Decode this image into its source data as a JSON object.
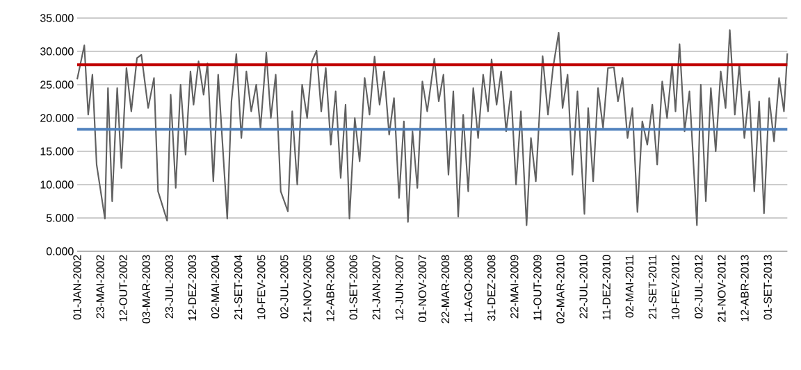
{
  "chart_data": {
    "type": "line",
    "xlim": [
      "2002-01-01",
      "2013-12-31"
    ],
    "ylim": [
      0,
      35
    ],
    "yticks": [
      {
        "value": 0,
        "label": "0.000"
      },
      {
        "value": 5,
        "label": "5.000"
      },
      {
        "value": 10,
        "label": "10.000"
      },
      {
        "value": 15,
        "label": "15.000"
      },
      {
        "value": 20,
        "label": "20.000"
      },
      {
        "value": 25,
        "label": "25.000"
      },
      {
        "value": 30,
        "label": "30.000"
      },
      {
        "value": 35,
        "label": "35.000"
      }
    ],
    "xticks": [
      {
        "value": "2002-01-01",
        "label": "01-JAN-2002"
      },
      {
        "value": "2002-05-23",
        "label": "23-MAI-2002"
      },
      {
        "value": "2002-10-12",
        "label": "12-OUT-2002"
      },
      {
        "value": "2003-03-03",
        "label": "03-MAR-2003"
      },
      {
        "value": "2003-07-23",
        "label": "23-JUL-2003"
      },
      {
        "value": "2003-12-12",
        "label": "12-DEZ-2003"
      },
      {
        "value": "2004-05-02",
        "label": "02-MAI-2004"
      },
      {
        "value": "2004-09-21",
        "label": "21-SET-2004"
      },
      {
        "value": "2005-02-10",
        "label": "10-FEV-2005"
      },
      {
        "value": "2005-07-02",
        "label": "02-JUL-2005"
      },
      {
        "value": "2005-11-21",
        "label": "21-NOV-2005"
      },
      {
        "value": "2006-04-12",
        "label": "12-ABR-2006"
      },
      {
        "value": "2006-09-01",
        "label": "01-SET-2006"
      },
      {
        "value": "2007-01-21",
        "label": "21-JAN-2007"
      },
      {
        "value": "2007-06-12",
        "label": "12-JUN-2007"
      },
      {
        "value": "2007-11-01",
        "label": "01-NOV-2007"
      },
      {
        "value": "2008-03-22",
        "label": "22-MAR-2008"
      },
      {
        "value": "2008-08-11",
        "label": "11-AGO-2008"
      },
      {
        "value": "2008-12-31",
        "label": "31-DEZ-2008"
      },
      {
        "value": "2009-05-22",
        "label": "22-MAI-2009"
      },
      {
        "value": "2009-10-11",
        "label": "11-OUT-2009"
      },
      {
        "value": "2010-03-02",
        "label": "02-MAR-2010"
      },
      {
        "value": "2010-07-22",
        "label": "22-JUL-2010"
      },
      {
        "value": "2010-12-11",
        "label": "11-DEZ-2010"
      },
      {
        "value": "2011-05-02",
        "label": "02-MAI-2011"
      },
      {
        "value": "2011-09-21",
        "label": "21-SET-2011"
      },
      {
        "value": "2012-02-10",
        "label": "10-FEV-2012"
      },
      {
        "value": "2012-07-02",
        "label": "02-JUL-2012"
      },
      {
        "value": "2012-11-21",
        "label": "21-NOV-2012"
      },
      {
        "value": "2013-04-12",
        "label": "12-ABR-2013"
      },
      {
        "value": "2013-09-01",
        "label": "01-SET-2013"
      }
    ],
    "grid": "y",
    "legend": false,
    "marker": "none",
    "line_style": "solid",
    "ref_lines": [
      {
        "axis": "y",
        "value": 28,
        "color": "#c00000"
      },
      {
        "axis": "y",
        "value": 18.3,
        "color": "#4f81bd"
      }
    ],
    "series": [
      {
        "color": "#606060",
        "x": [
          "2002-01-01",
          "2002-02-14",
          "2002-03-10",
          "2002-04-05",
          "2002-05-01",
          "2002-06-21",
          "2002-07-10",
          "2002-08-05",
          "2002-09-05",
          "2002-10-01",
          "2002-11-01",
          "2002-12-01",
          "2003-01-05",
          "2003-02-01",
          "2003-03-15",
          "2003-04-20",
          "2003-05-15",
          "2003-07-10",
          "2003-08-01",
          "2003-09-01",
          "2003-10-01",
          "2003-11-01",
          "2003-12-01",
          "2003-12-20",
          "2004-01-20",
          "2004-02-20",
          "2004-03-15",
          "2004-04-20",
          "2004-05-20",
          "2004-07-15",
          "2004-08-10",
          "2004-09-09",
          "2004-10-10",
          "2004-11-10",
          "2004-12-10",
          "2005-01-10",
          "2005-02-05",
          "2005-03-13",
          "2005-04-10",
          "2005-05-10",
          "2005-06-10",
          "2005-07-24",
          "2005-08-20",
          "2005-09-20",
          "2005-10-20",
          "2005-11-20",
          "2005-12-20",
          "2006-01-17",
          "2006-02-15",
          "2006-03-15",
          "2006-04-15",
          "2006-05-15",
          "2006-06-15",
          "2006-07-15",
          "2006-08-08",
          "2006-09-10",
          "2006-10-10",
          "2006-11-10",
          "2006-12-10",
          "2007-01-10",
          "2007-02-10",
          "2007-03-10",
          "2007-04-10",
          "2007-05-10",
          "2007-06-10",
          "2007-07-10",
          "2007-08-04",
          "2007-09-01",
          "2007-10-01",
          "2007-11-01",
          "2007-12-01",
          "2008-01-14",
          "2008-02-10",
          "2008-03-10",
          "2008-04-10",
          "2008-05-10",
          "2008-06-09",
          "2008-07-10",
          "2008-08-10",
          "2008-09-10",
          "2008-10-10",
          "2008-11-10",
          "2008-12-10",
          "2009-01-01",
          "2009-02-01",
          "2009-03-01",
          "2009-04-01",
          "2009-05-01",
          "2009-06-01",
          "2009-07-01",
          "2009-08-05",
          "2009-09-01",
          "2009-10-01",
          "2009-11-12",
          "2009-12-15",
          "2010-01-15",
          "2010-02-19",
          "2010-03-15",
          "2010-04-15",
          "2010-05-15",
          "2010-06-15",
          "2010-07-28",
          "2010-08-20",
          "2010-09-20",
          "2010-10-20",
          "2010-11-20",
          "2010-12-20",
          "2011-01-26",
          "2011-02-20",
          "2011-03-20",
          "2011-04-20",
          "2011-05-20",
          "2011-06-20",
          "2011-07-20",
          "2011-08-20",
          "2011-09-20",
          "2011-10-20",
          "2011-11-20",
          "2011-12-20",
          "2012-01-20",
          "2012-02-10",
          "2012-03-06",
          "2012-04-06",
          "2012-05-06",
          "2012-06-21",
          "2012-07-15",
          "2012-08-15",
          "2012-09-15",
          "2012-10-15",
          "2012-11-15",
          "2012-12-15",
          "2013-01-10",
          "2013-02-10",
          "2013-03-10",
          "2013-04-10",
          "2013-05-10",
          "2013-06-10",
          "2013-07-10",
          "2013-08-09",
          "2013-09-10",
          "2013-10-10",
          "2013-11-10",
          "2013-12-10",
          "2013-12-31"
        ],
        "values": [
          25.8,
          30.9,
          20.5,
          26.5,
          13,
          4.9,
          24.5,
          7.5,
          24.5,
          12.5,
          27.5,
          21,
          29,
          29.5,
          21.5,
          26,
          9,
          4.6,
          23.5,
          9.5,
          25,
          14.5,
          27,
          22,
          28.5,
          23.5,
          28.2,
          10.5,
          26.5,
          4.9,
          22.5,
          29.6,
          17,
          27,
          21,
          25,
          18.5,
          29.8,
          20,
          26.5,
          9,
          6,
          21,
          10,
          25,
          20,
          28.5,
          30.1,
          21,
          27.5,
          16,
          24,
          11,
          22,
          4.9,
          20,
          13.5,
          26,
          20.5,
          29.2,
          22,
          27,
          17.5,
          23,
          8,
          19.5,
          4.4,
          18,
          9.5,
          25.5,
          21,
          28.9,
          22.5,
          26.5,
          11.5,
          24,
          5.2,
          20.5,
          9,
          24.5,
          17,
          26.5,
          21,
          28.8,
          22,
          27,
          18,
          24,
          10,
          21,
          3.9,
          17,
          10.5,
          29.3,
          20.5,
          27.5,
          32.8,
          21.5,
          26.5,
          11.5,
          24,
          5.6,
          21.5,
          10.5,
          24.5,
          18.5,
          27.5,
          27.6,
          22.5,
          26,
          17,
          21.5,
          5.9,
          19.5,
          16,
          22,
          13,
          25.5,
          20,
          28,
          21,
          31.1,
          18,
          24,
          3.9,
          25,
          7.5,
          24.5,
          15,
          27,
          21.5,
          33.2,
          20.5,
          28,
          17,
          24,
          9,
          22.5,
          5.7,
          23,
          16.5,
          26,
          21,
          29.7
        ]
      }
    ]
  }
}
